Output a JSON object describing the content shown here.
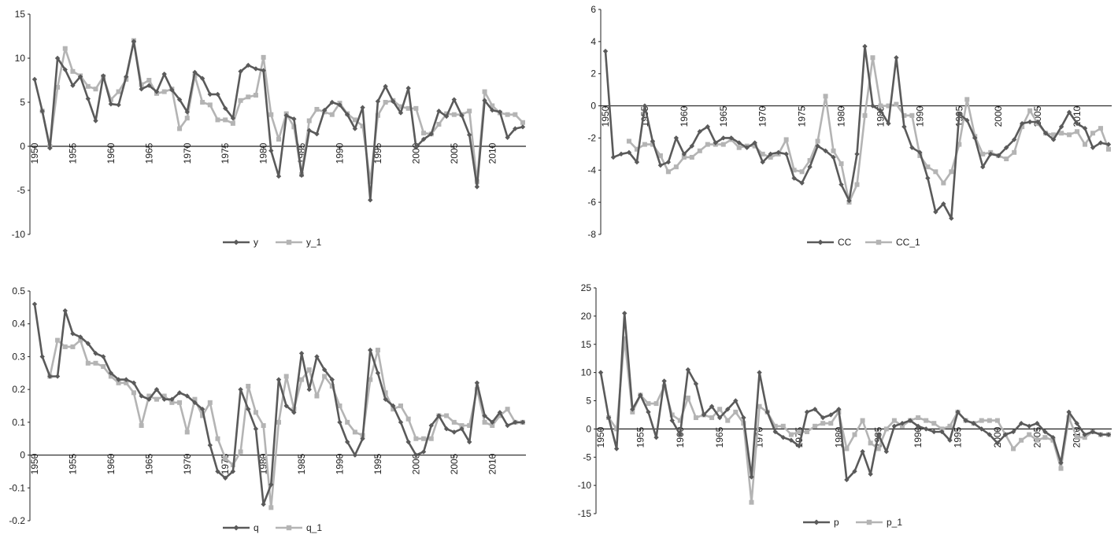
{
  "chart_data": [
    {
      "type": "line",
      "title": "",
      "xlabel": "",
      "ylabel": "",
      "ylim": [
        -10,
        15
      ],
      "y_ticks": [
        "-10",
        "-5",
        "0",
        "5",
        "10",
        "15"
      ],
      "x_ticks": [
        "1950",
        "1955",
        "1960",
        "1965",
        "1970",
        "1975",
        "1980",
        "1985",
        "1990",
        "1995",
        "2000",
        "2005",
        "2010"
      ],
      "x": [
        1950,
        1951,
        1952,
        1953,
        1954,
        1955,
        1956,
        1957,
        1958,
        1959,
        1960,
        1961,
        1962,
        1963,
        1964,
        1965,
        1966,
        1967,
        1968,
        1969,
        1970,
        1971,
        1972,
        1973,
        1974,
        1975,
        1976,
        1977,
        1978,
        1979,
        1980,
        1981,
        1982,
        1983,
        1984,
        1985,
        1986,
        1987,
        1988,
        1989,
        1990,
        1991,
        1992,
        1993,
        1994,
        1995,
        1996,
        1997,
        1998,
        1999,
        2000,
        2001,
        2002,
        2003,
        2004,
        2005,
        2006,
        2007,
        2008,
        2009,
        2010,
        2011,
        2012,
        2013,
        2014
      ],
      "series": [
        {
          "name": "y",
          "color": "#5a5a5a",
          "marker": "diamond",
          "values": [
            7.6,
            4.0,
            -0.2,
            10.0,
            8.7,
            6.9,
            7.9,
            5.4,
            2.9,
            8.0,
            4.8,
            4.7,
            7.9,
            11.9,
            6.5,
            6.9,
            6.2,
            8.2,
            6.4,
            5.3,
            3.9,
            8.4,
            7.7,
            5.9,
            5.9,
            4.3,
            3.2,
            8.5,
            9.2,
            8.8,
            8.6,
            -0.5,
            -3.4,
            3.5,
            3.1,
            -3.3,
            1.8,
            1.4,
            4.1,
            5.0,
            4.7,
            3.6,
            2.0,
            4.4,
            -6.1,
            5.1,
            6.8,
            5.1,
            3.8,
            6.6,
            -0.1,
            0.8,
            1.4,
            4.0,
            3.4,
            5.3,
            3.5,
            1.3,
            -4.6,
            5.2,
            4.1,
            3.9,
            1.0,
            2.0,
            2.2
          ]
        },
        {
          "name": "y_1",
          "color": "#b4b4b4",
          "marker": "square",
          "values": [
            null,
            4.0,
            0.0,
            6.7,
            11.1,
            8.5,
            8.0,
            6.8,
            6.5,
            7.9,
            5.3,
            6.2,
            7.6,
            12.0,
            7.0,
            7.5,
            6.0,
            6.2,
            6.5,
            2.0,
            3.2,
            8.0,
            5.0,
            4.7,
            3.0,
            3.0,
            2.6,
            5.2,
            5.6,
            5.8,
            10.1,
            3.6,
            0.8,
            3.7,
            2.2,
            -3.2,
            2.9,
            4.2,
            3.9,
            3.6,
            4.9,
            3.7,
            3.0,
            2.3,
            -4.0,
            3.5,
            5.0,
            5.2,
            4.5,
            4.3,
            4.3,
            1.5,
            1.4,
            2.5,
            3.7,
            3.6,
            3.6,
            4.0,
            -4.0,
            6.2,
            4.6,
            3.8,
            3.6,
            3.6,
            2.7
          ]
        }
      ]
    },
    {
      "type": "line",
      "title": "",
      "xlabel": "",
      "ylabel": "",
      "ylim": [
        -8,
        6
      ],
      "y_ticks": [
        "-8",
        "-6",
        "-4",
        "-2",
        "0",
        "2",
        "4",
        "6"
      ],
      "x_ticks": [
        "1950",
        "1955",
        "1960",
        "1965",
        "1970",
        "1975",
        "1980",
        "1985",
        "1990",
        "1995",
        "2000",
        "2005",
        "2010"
      ],
      "x": [
        1950,
        1951,
        1952,
        1953,
        1954,
        1955,
        1956,
        1957,
        1958,
        1959,
        1960,
        1961,
        1962,
        1963,
        1964,
        1965,
        1966,
        1967,
        1968,
        1969,
        1970,
        1971,
        1972,
        1973,
        1974,
        1975,
        1976,
        1977,
        1978,
        1979,
        1980,
        1981,
        1982,
        1983,
        1984,
        1985,
        1986,
        1987,
        1988,
        1989,
        1990,
        1991,
        1992,
        1993,
        1994,
        1995,
        1996,
        1997,
        1998,
        1999,
        2000,
        2001,
        2002,
        2003,
        2004,
        2005,
        2006,
        2007,
        2008,
        2009,
        2010,
        2011,
        2012,
        2013,
        2014
      ],
      "series": [
        {
          "name": "CC",
          "color": "#5a5a5a",
          "marker": "diamond",
          "values": [
            3.4,
            -3.2,
            -3.0,
            -2.9,
            -3.5,
            0.0,
            -2.2,
            -3.7,
            -3.5,
            -2.0,
            -3.0,
            -2.5,
            -1.6,
            -1.3,
            -2.3,
            -2.0,
            -2.0,
            -2.3,
            -2.6,
            -2.3,
            -3.5,
            -3.0,
            -2.9,
            -3.0,
            -4.5,
            -4.8,
            -3.8,
            -2.5,
            -2.8,
            -3.2,
            -4.9,
            -5.9,
            -3.0,
            3.7,
            0.0,
            -0.3,
            -1.1,
            3.0,
            -1.3,
            -2.6,
            -2.9,
            -4.5,
            -6.6,
            -6.1,
            -7.0,
            -0.5,
            -0.9,
            -2.0,
            -3.8,
            -3.0,
            -3.1,
            -2.6,
            -2.1,
            -1.1,
            -1.0,
            -1.0,
            -1.7,
            -2.1,
            -1.3,
            -0.4,
            -1.1,
            -1.4,
            -2.6,
            -2.3,
            -2.4
          ]
        },
        {
          "name": "CC_1",
          "color": "#b4b4b4",
          "marker": "square",
          "values": [
            null,
            null,
            null,
            -2.2,
            -2.7,
            -2.4,
            -2.4,
            -3.1,
            -4.1,
            -3.8,
            -3.2,
            -3.2,
            -2.8,
            -2.4,
            -2.4,
            -2.4,
            -2.1,
            -2.6,
            -2.5,
            -2.5,
            -3.0,
            -3.2,
            -3.0,
            -2.1,
            -4.0,
            -4.1,
            -3.4,
            -2.2,
            0.6,
            -2.8,
            -3.6,
            -6.0,
            -4.9,
            -0.6,
            3.0,
            0.0,
            0.0,
            0.1,
            -0.6,
            -0.6,
            -3.1,
            -3.8,
            -4.1,
            -4.8,
            -4.1,
            -2.4,
            0.4,
            -1.9,
            -3.0,
            -2.9,
            -3.1,
            -3.3,
            -2.9,
            -1.3,
            -0.3,
            -1.1,
            -1.7,
            -1.8,
            -1.7,
            -1.8,
            -1.6,
            -2.4,
            -1.7,
            -1.4,
            -2.7
          ]
        }
      ]
    },
    {
      "type": "line",
      "title": "",
      "xlabel": "",
      "ylabel": "",
      "ylim": [
        -0.2,
        0.5
      ],
      "y_ticks": [
        "-0.2",
        "-0.1",
        "0",
        "0.1",
        "0.2",
        "0.3",
        "0.4",
        "0.5"
      ],
      "x_ticks": [
        "1950",
        "1955",
        "1960",
        "1965",
        "1970",
        "1975",
        "1980",
        "1985",
        "1990",
        "1995",
        "2000",
        "2005",
        "2010"
      ],
      "x": [
        1950,
        1951,
        1952,
        1953,
        1954,
        1955,
        1956,
        1957,
        1958,
        1959,
        1960,
        1961,
        1962,
        1963,
        1964,
        1965,
        1966,
        1967,
        1968,
        1969,
        1970,
        1971,
        1972,
        1973,
        1974,
        1975,
        1976,
        1977,
        1978,
        1979,
        1980,
        1981,
        1982,
        1983,
        1984,
        1985,
        1986,
        1987,
        1988,
        1989,
        1990,
        1991,
        1992,
        1993,
        1994,
        1995,
        1996,
        1997,
        1998,
        1999,
        2000,
        2001,
        2002,
        2003,
        2004,
        2005,
        2006,
        2007,
        2008,
        2009,
        2010,
        2011,
        2012,
        2013,
        2014
      ],
      "series": [
        {
          "name": "q",
          "color": "#5a5a5a",
          "marker": "diamond",
          "values": [
            0.46,
            0.3,
            0.24,
            0.24,
            0.44,
            0.37,
            0.36,
            0.34,
            0.31,
            0.3,
            0.25,
            0.23,
            0.23,
            0.22,
            0.18,
            0.17,
            0.2,
            0.17,
            0.17,
            0.19,
            0.18,
            0.16,
            0.14,
            0.03,
            -0.05,
            -0.07,
            -0.05,
            0.2,
            0.14,
            0.08,
            -0.15,
            -0.09,
            0.23,
            0.15,
            0.13,
            0.31,
            0.2,
            0.3,
            0.26,
            0.23,
            0.1,
            0.04,
            0.0,
            0.05,
            0.32,
            0.25,
            0.17,
            0.15,
            0.1,
            0.04,
            0.0,
            0.01,
            0.09,
            0.12,
            0.08,
            0.07,
            0.08,
            0.04,
            0.22,
            0.12,
            0.1,
            0.13,
            0.09,
            0.1,
            0.1
          ]
        },
        {
          "name": "q_1",
          "color": "#b4b4b4",
          "marker": "square",
          "values": [
            null,
            null,
            0.24,
            0.35,
            0.33,
            0.33,
            0.35,
            0.28,
            0.28,
            0.27,
            0.24,
            0.22,
            0.22,
            0.19,
            0.09,
            0.18,
            0.17,
            0.18,
            0.16,
            0.16,
            0.07,
            0.17,
            0.12,
            0.16,
            0.05,
            -0.01,
            -0.03,
            0.01,
            0.21,
            0.13,
            0.09,
            -0.16,
            0.1,
            0.24,
            0.14,
            0.23,
            0.26,
            0.18,
            0.24,
            0.21,
            0.15,
            0.1,
            0.07,
            0.06,
            0.23,
            0.32,
            0.19,
            0.14,
            0.15,
            0.11,
            0.05,
            0.05,
            0.05,
            0.12,
            0.12,
            0.1,
            0.09,
            0.09,
            0.2,
            0.1,
            0.09,
            0.12,
            0.14,
            0.1,
            0.1
          ]
        }
      ]
    },
    {
      "type": "line",
      "title": "",
      "xlabel": "",
      "ylabel": "",
      "ylim": [
        -15,
        25
      ],
      "y_ticks": [
        "-15",
        "-10",
        "-5",
        "0",
        "5",
        "10",
        "15",
        "20",
        "25"
      ],
      "x_ticks": [
        "1950",
        "1955",
        "1960",
        "1965",
        "1970",
        "1975",
        "1980",
        "1985",
        "1990",
        "1995",
        "2000",
        "2005",
        "2010"
      ],
      "x": [
        1950,
        1951,
        1952,
        1953,
        1954,
        1955,
        1956,
        1957,
        1958,
        1959,
        1960,
        1961,
        1962,
        1963,
        1964,
        1965,
        1966,
        1967,
        1968,
        1969,
        1970,
        1971,
        1972,
        1973,
        1974,
        1975,
        1976,
        1977,
        1978,
        1979,
        1980,
        1981,
        1982,
        1983,
        1984,
        1985,
        1986,
        1987,
        1988,
        1989,
        1990,
        1991,
        1992,
        1993,
        1994,
        1995,
        1996,
        1997,
        1998,
        1999,
        2000,
        2001,
        2002,
        2003,
        2004,
        2005,
        2006,
        2007,
        2008,
        2009,
        2010,
        2011,
        2012,
        2013,
        2014
      ],
      "series": [
        {
          "name": "p",
          "color": "#5a5a5a",
          "marker": "diamond",
          "values": [
            10.0,
            2.0,
            -3.5,
            20.5,
            3.5,
            6.0,
            3.0,
            -1.5,
            8.5,
            1.5,
            -1.0,
            10.5,
            8.0,
            2.5,
            4.0,
            2.0,
            3.5,
            5.0,
            2.0,
            -8.5,
            10.0,
            3.0,
            -0.5,
            -1.5,
            -2.0,
            -3.0,
            3.0,
            3.5,
            2.0,
            2.5,
            3.5,
            -9.0,
            -7.5,
            -4.0,
            -8.0,
            -1.0,
            -4.0,
            0.5,
            1.0,
            1.5,
            0.5,
            0.0,
            -0.5,
            -0.5,
            -2.0,
            3.0,
            1.5,
            1.0,
            0.0,
            -1.0,
            -2.5,
            -1.0,
            -0.5,
            1.0,
            0.5,
            1.0,
            -0.5,
            -1.5,
            -6.0,
            3.0,
            1.0,
            -1.0,
            -0.5,
            -1.0,
            -1.0
          ]
        },
        {
          "name": "p_1",
          "color": "#b4b4b4",
          "marker": "square",
          "values": [
            null,
            2.0,
            0.0,
            16.0,
            3.0,
            6.0,
            4.5,
            4.5,
            7.5,
            2.5,
            1.5,
            5.5,
            2.0,
            2.5,
            2.0,
            3.5,
            1.5,
            3.0,
            1.0,
            -13.0,
            4.0,
            3.0,
            0.5,
            0.5,
            -1.0,
            -0.5,
            -0.5,
            0.5,
            1.0,
            1.0,
            3.0,
            -3.5,
            -1.0,
            1.5,
            -2.5,
            -3.5,
            0.0,
            1.5,
            0.5,
            1.5,
            2.0,
            1.5,
            1.0,
            0.0,
            0.5,
            3.0,
            1.5,
            1.0,
            1.5,
            1.5,
            1.5,
            -1.0,
            -3.5,
            -2.0,
            -1.0,
            -2.0,
            -1.5,
            -2.0,
            -7.0,
            2.0,
            -1.5,
            -1.5,
            -0.5,
            -1.0,
            -1.0
          ]
        }
      ]
    }
  ]
}
